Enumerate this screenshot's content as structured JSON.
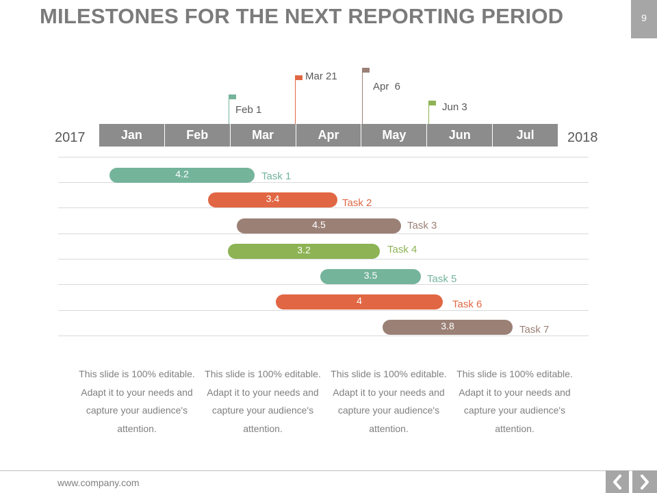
{
  "title": "MILESTONES FOR THE NEXT REPORTING PERIOD",
  "page_number": "9",
  "years": {
    "start": "2017",
    "end": "2018"
  },
  "months": [
    "Jan",
    "Feb",
    "Mar",
    "Apr",
    "May",
    "Jun",
    "Jul"
  ],
  "milestones": [
    {
      "label": "Feb 1",
      "color": "#74b49b"
    },
    {
      "label": "Mar 21",
      "color": "#e16744"
    },
    {
      "label": "Apr  6",
      "color": "#9b8076"
    },
    {
      "label": "Jun 3",
      "color": "#8db354"
    }
  ],
  "tasks": [
    {
      "name": "Task 1",
      "value": "4.2",
      "color": "#74b49b"
    },
    {
      "name": "Task 2",
      "value": "3.4",
      "color": "#e16744"
    },
    {
      "name": "Task 3",
      "value": "4.5",
      "color": "#9b8076"
    },
    {
      "name": "Task 4",
      "value": "3.2",
      "color": "#8db354"
    },
    {
      "name": "Task 5",
      "value": "3.5",
      "color": "#74b49b"
    },
    {
      "name": "Task 6",
      "value": "4",
      "color": "#e16744"
    },
    {
      "name": "Task 7",
      "value": "3.8",
      "color": "#9b8076"
    }
  ],
  "descriptions": [
    "This slide is 100% editable. Adapt it to your needs and capture your audience's attention.",
    "This slide is 100% editable. Adapt it to your needs and capture your audience's attention.",
    "This slide is 100% editable. Adapt it to your needs and capture your audience's attention.",
    "This slide is 100% editable. Adapt it to your needs and capture your audience's attention."
  ],
  "footer": {
    "url": "www.company.com"
  },
  "nav": {
    "prev_icon": "chevron-left-icon",
    "next_icon": "chevron-right-icon"
  }
}
